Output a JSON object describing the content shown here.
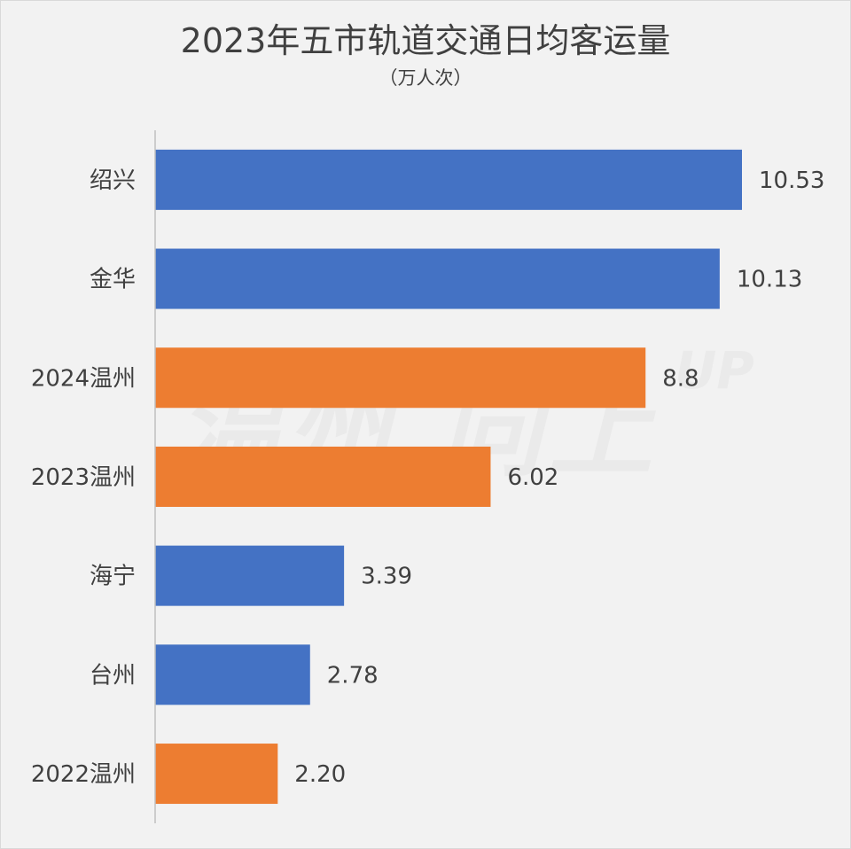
{
  "chart_data": {
    "type": "bar",
    "orientation": "horizontal",
    "title": "2023年五市轨道交通日均客运量",
    "subtitle": "（万人次）",
    "categories": [
      "绍兴",
      "金华",
      "2024温州",
      "2023温州",
      "海宁",
      "台州",
      "2022温州"
    ],
    "values": [
      10.53,
      10.13,
      8.8,
      6.02,
      3.39,
      2.78,
      2.2
    ],
    "value_labels": [
      "10.53",
      "10.13",
      "8.8",
      "6.02",
      "3.39",
      "2.78",
      "2.20"
    ],
    "bar_colors": [
      "#4472c4",
      "#4472c4",
      "#ed7d31",
      "#ed7d31",
      "#4472c4",
      "#4472c4",
      "#ed7d31"
    ],
    "xlim": [
      0,
      10.53
    ],
    "grid": false,
    "legend": "none"
  },
  "colors": {
    "blue": "#4472c4",
    "orange": "#ed7d31",
    "axis": "#bfbfbf",
    "background": "#f2f2f2"
  }
}
